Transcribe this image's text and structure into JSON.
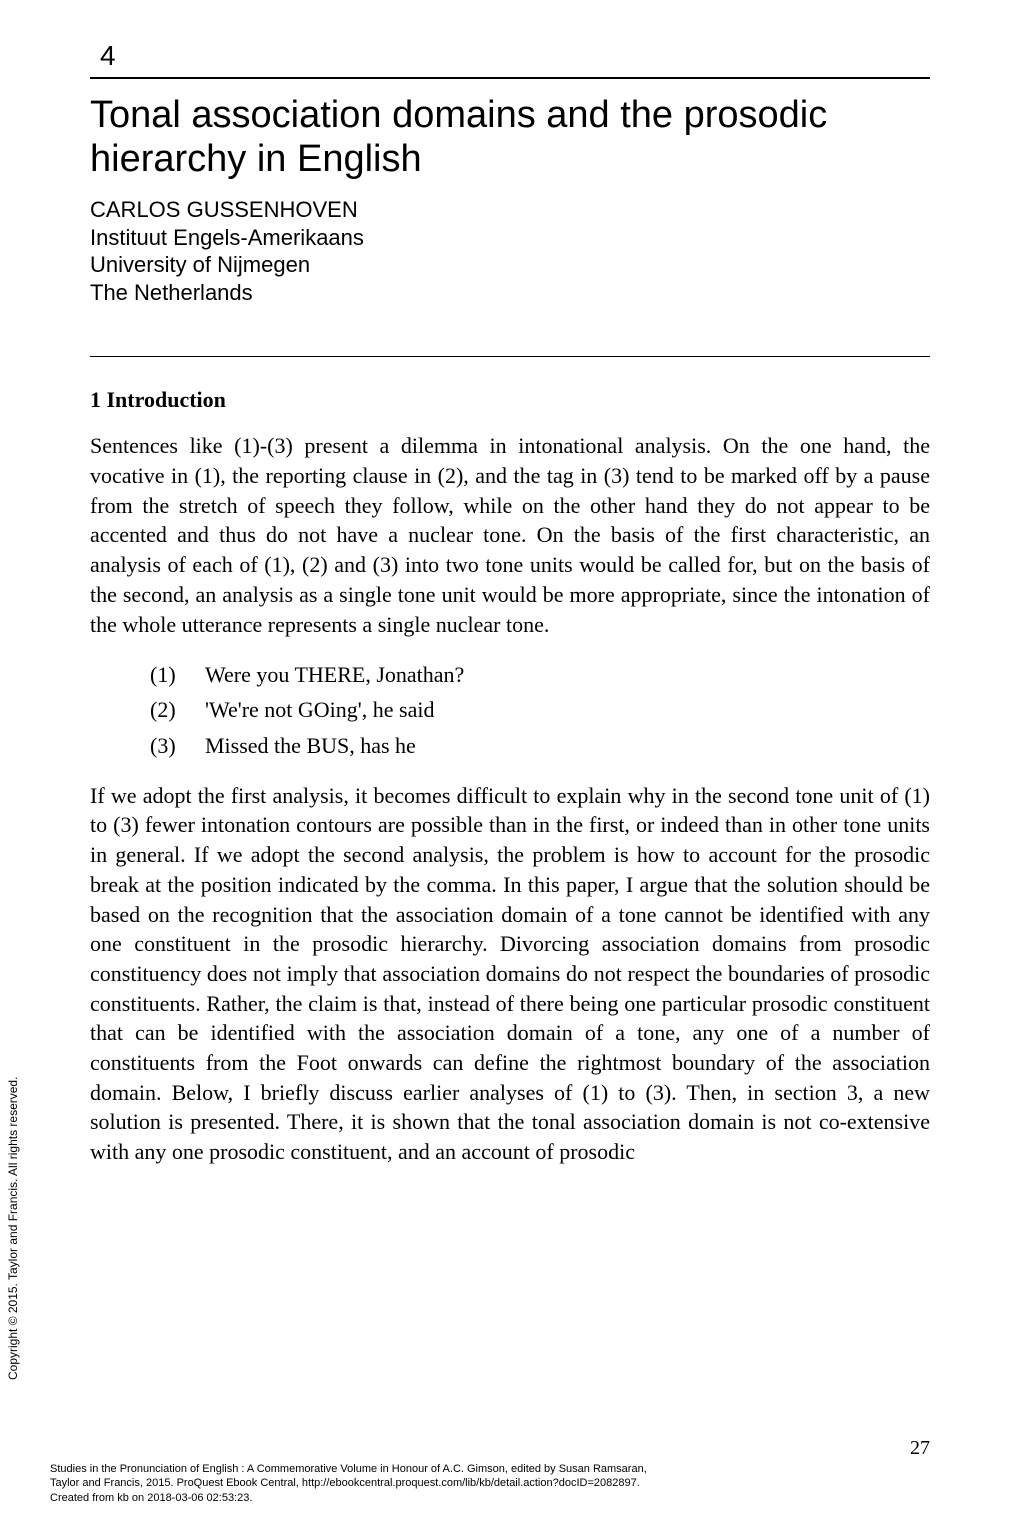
{
  "chapter": {
    "number": "4",
    "title": "Tonal association domains and the prosodic hierarchy in English",
    "author": "CARLOS GUSSENHOVEN",
    "affiliation_line1": "Instituut Engels-Amerikaans",
    "affiliation_line2": "University of Nijmegen",
    "affiliation_line3": "The Netherlands"
  },
  "section": {
    "heading": "1 Introduction",
    "para1": "Sentences like (1)-(3) present a dilemma in intonational analysis. On the one hand, the vocative in (1), the reporting clause in (2), and the tag in (3) tend to be marked off by a pause from the stretch of speech they follow, while on the other hand they do not appear to be accented and thus do not have a nuclear tone. On the basis of the first characteristic, an analysis of each of (1), (2) and (3) into two tone units would be called for, but on the basis of the second, an analysis as a single tone unit would be more appropriate, since the intonation of the whole utterance represents a single nuclear tone.",
    "examples": [
      {
        "num": "(1)",
        "text": "Were you THERE, Jonathan?"
      },
      {
        "num": "(2)",
        "text": "'We're not GOing', he said"
      },
      {
        "num": "(3)",
        "text": "Missed the BUS, has he"
      }
    ],
    "para2": "If we adopt the first analysis, it becomes difficult to explain why in the second tone unit of (1) to (3) fewer intonation contours are possible than in the first, or indeed than in other tone units in general. If we adopt the second analysis, the problem is how to account for the prosodic break at the position indicated by the comma. In this paper, I argue that the solution should be based on the recognition that the association domain of a tone cannot be identified with any one constituent in the prosodic hierarchy. Divorcing association domains from prosodic constituency does not imply that association domains do not respect the boundaries of prosodic constituents. Rather, the claim is that, instead of there being one particular prosodic constituent that can be identified with the association domain of a tone, any one of a number of constituents from the Foot onwards can define the rightmost boundary of the association domain. Below, I briefly discuss earlier analyses of (1) to (3). Then, in section 3, a new solution is presented. There, it is shown that the tonal association domain is not co-extensive with any one prosodic constituent, and an account of prosodic"
  },
  "page_number": "27",
  "copyright_vertical": "Copyright © 2015. Taylor and Francis. All rights reserved.",
  "footer_line1": "Studies in the Pronunciation of English : A Commemorative Volume in Honour of A.C. Gimson, edited by Susan Ramsaran,",
  "footer_line2": "         Taylor and Francis, 2015. ProQuest Ebook Central, http://ebookcentral.proquest.com/lib/kb/detail.action?docID=2082897.",
  "footer_line3": "Created from kb on 2018-03-06 02:53:23."
}
